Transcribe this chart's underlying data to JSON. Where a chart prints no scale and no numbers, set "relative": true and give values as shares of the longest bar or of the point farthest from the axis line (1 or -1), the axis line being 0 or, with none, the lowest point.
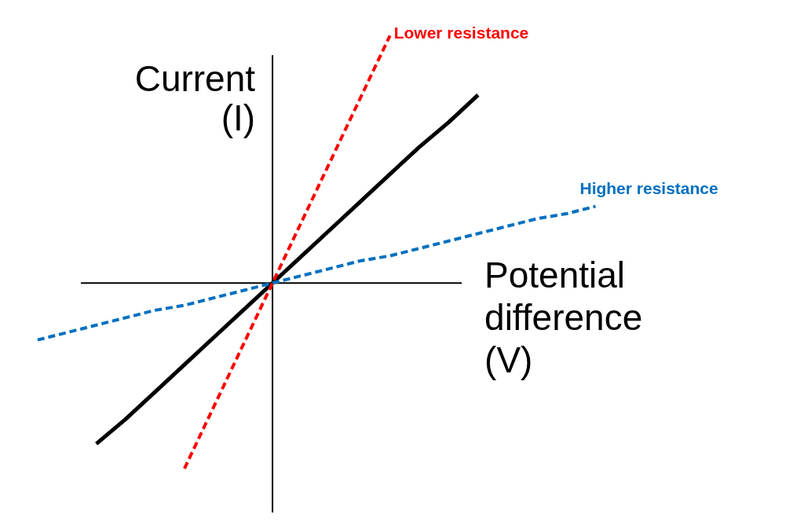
{
  "chart_data": {
    "type": "line",
    "relative": true,
    "xlabel": "Potential difference (V)",
    "ylabel": "Current (I)",
    "grid": false,
    "marker": "none",
    "categories": [
      null,
      null,
      null,
      null,
      null,
      null,
      null,
      null,
      null,
      null,
      null,
      null,
      null,
      null,
      null,
      null,
      null,
      null,
      null,
      null
    ],
    "series": [
      {
        "color": "#000000",
        "line_style": "solid",
        "values": [
          null,
          null,
          -0.65,
          -0.55,
          -0.44,
          -0.33,
          -0.22,
          -0.11,
          0,
          0.11,
          0.22,
          0.33,
          0.44,
          0.55,
          0.65,
          0.76,
          null,
          null,
          null,
          null
        ]
      },
      {
        "name": "Lower resistance",
        "color": "#ff0000",
        "line_style": "dashed",
        "values": [
          null,
          null,
          null,
          null,
          null,
          -0.75,
          -0.5,
          -0.25,
          0,
          0.25,
          0.5,
          0.75,
          1.0,
          null,
          null,
          null,
          null,
          null,
          null,
          null
        ]
      },
      {
        "name": "Higher resistance",
        "color": "#0070c0",
        "line_style": "dashed",
        "values": [
          -0.23,
          -0.2,
          -0.17,
          -0.14,
          -0.11,
          -0.09,
          -0.06,
          -0.03,
          0,
          0.03,
          0.06,
          0.09,
          0.11,
          0.14,
          0.17,
          0.2,
          0.23,
          0.26,
          0.28,
          0.31
        ]
      }
    ]
  }
}
